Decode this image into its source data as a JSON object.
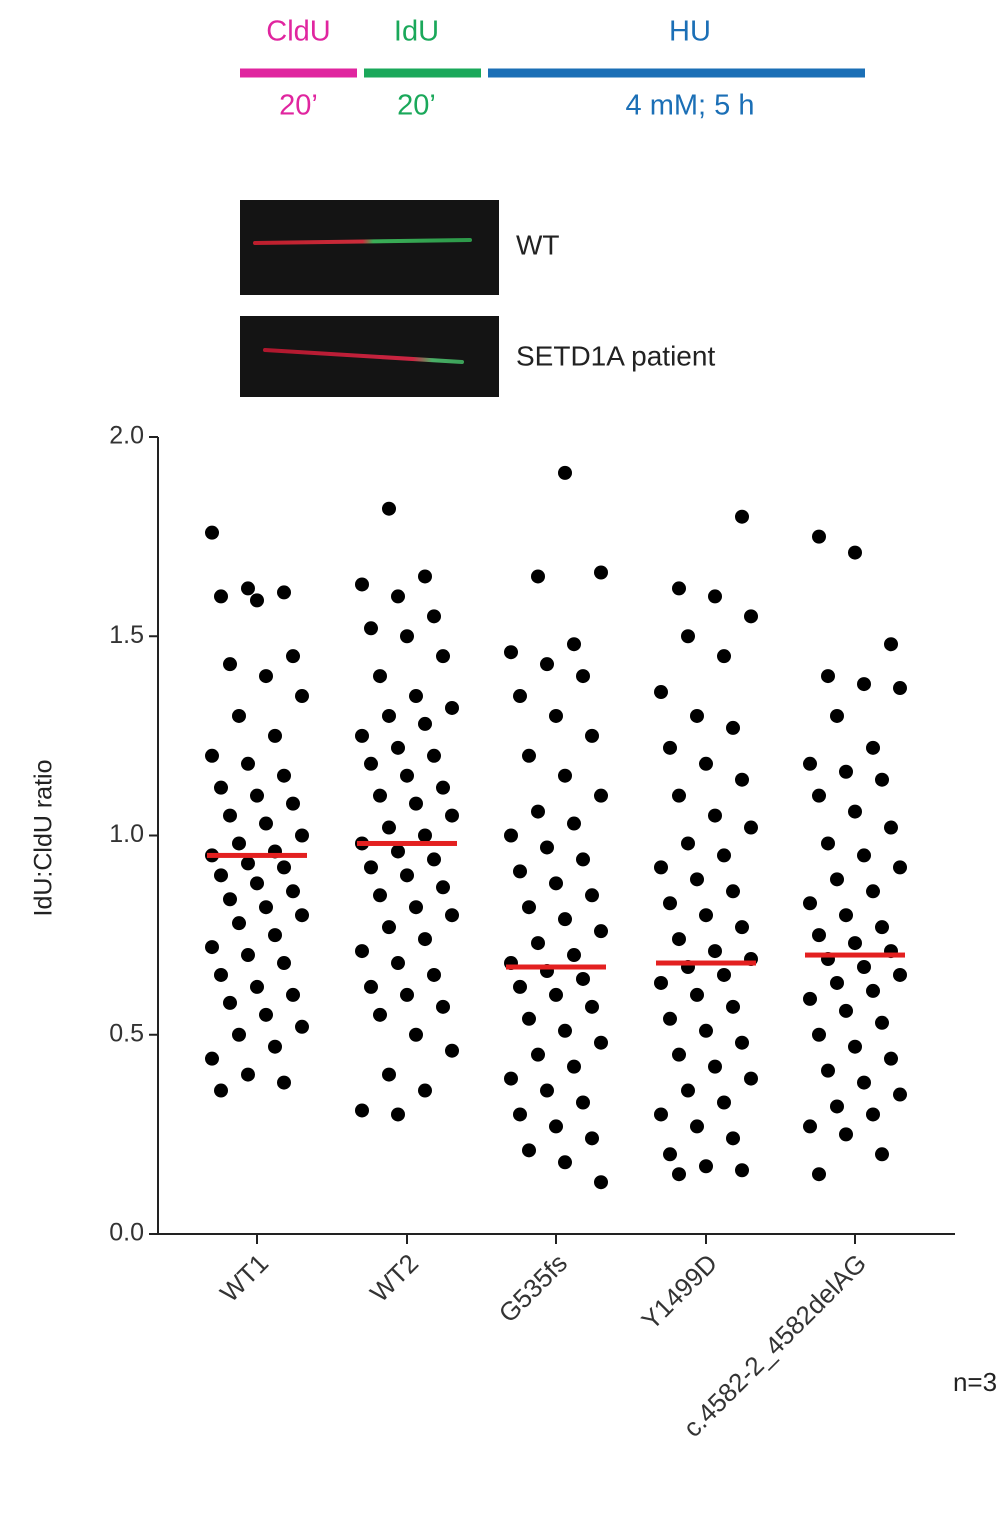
{
  "schematic": {
    "steps": [
      {
        "label": "CldU",
        "time": "20’",
        "color": "#e0259f"
      },
      {
        "label": "IdU",
        "time": "20’",
        "color": "#1aa85a"
      },
      {
        "label": "HU",
        "time": "4 mM; 5 h",
        "color": "#1b6fb6"
      }
    ]
  },
  "micrographs": [
    {
      "label": "WT"
    },
    {
      "label": "SETD1A patient"
    }
  ],
  "chart_data": {
    "type": "scatter",
    "ylabel": "IdU:CldU ratio",
    "note": "n=3",
    "categories": [
      "WT1",
      "WT2",
      "G535fs",
      "Y1499D",
      "c.4582-2_4582delAG"
    ],
    "values": [
      [
        1.76,
        1.62,
        1.61,
        1.6,
        1.59,
        1.45,
        1.43,
        1.4,
        1.35,
        1.3,
        1.25,
        1.2,
        1.18,
        1.15,
        1.12,
        1.1,
        1.08,
        1.05,
        1.03,
        1.0,
        0.98,
        0.96,
        0.95,
        0.93,
        0.92,
        0.9,
        0.88,
        0.86,
        0.84,
        0.82,
        0.8,
        0.78,
        0.75,
        0.72,
        0.7,
        0.68,
        0.65,
        0.62,
        0.6,
        0.58,
        0.55,
        0.52,
        0.5,
        0.47,
        0.44,
        0.4,
        0.38,
        0.36
      ],
      [
        1.82,
        1.65,
        1.63,
        1.6,
        1.55,
        1.52,
        1.5,
        1.45,
        1.4,
        1.35,
        1.32,
        1.3,
        1.28,
        1.25,
        1.22,
        1.2,
        1.18,
        1.15,
        1.12,
        1.1,
        1.08,
        1.05,
        1.02,
        1.0,
        0.98,
        0.96,
        0.94,
        0.92,
        0.9,
        0.87,
        0.85,
        0.82,
        0.8,
        0.77,
        0.74,
        0.71,
        0.68,
        0.65,
        0.62,
        0.6,
        0.57,
        0.55,
        0.5,
        0.46,
        0.4,
        0.36,
        0.31,
        0.3
      ],
      [
        1.91,
        1.66,
        1.65,
        1.48,
        1.46,
        1.43,
        1.4,
        1.35,
        1.3,
        1.25,
        1.2,
        1.15,
        1.1,
        1.06,
        1.03,
        1.0,
        0.97,
        0.94,
        0.91,
        0.88,
        0.85,
        0.82,
        0.79,
        0.76,
        0.73,
        0.7,
        0.68,
        0.66,
        0.64,
        0.62,
        0.6,
        0.57,
        0.54,
        0.51,
        0.48,
        0.45,
        0.42,
        0.39,
        0.36,
        0.33,
        0.3,
        0.27,
        0.24,
        0.21,
        0.18,
        0.13
      ],
      [
        1.8,
        1.62,
        1.6,
        1.55,
        1.5,
        1.45,
        1.36,
        1.3,
        1.27,
        1.22,
        1.18,
        1.14,
        1.1,
        1.05,
        1.02,
        0.98,
        0.95,
        0.92,
        0.89,
        0.86,
        0.83,
        0.8,
        0.77,
        0.74,
        0.71,
        0.69,
        0.67,
        0.65,
        0.63,
        0.6,
        0.57,
        0.54,
        0.51,
        0.48,
        0.45,
        0.42,
        0.39,
        0.36,
        0.33,
        0.3,
        0.27,
        0.24,
        0.2,
        0.17,
        0.16,
        0.15
      ],
      [
        1.75,
        1.71,
        1.48,
        1.4,
        1.38,
        1.37,
        1.3,
        1.22,
        1.18,
        1.16,
        1.14,
        1.1,
        1.06,
        1.02,
        0.98,
        0.95,
        0.92,
        0.89,
        0.86,
        0.83,
        0.8,
        0.77,
        0.75,
        0.73,
        0.71,
        0.69,
        0.67,
        0.65,
        0.63,
        0.61,
        0.59,
        0.56,
        0.53,
        0.5,
        0.47,
        0.44,
        0.41,
        0.38,
        0.35,
        0.32,
        0.3,
        0.27,
        0.25,
        0.2,
        0.15
      ]
    ],
    "medians": [
      0.95,
      0.98,
      0.67,
      0.68,
      0.7
    ],
    "color": "#000000",
    "median_color": "#e32020",
    "ylim": [
      0,
      2
    ],
    "yticks": [
      {
        "value": 0,
        "label": "0.0"
      },
      {
        "value": 0.5,
        "label": "0.5"
      },
      {
        "value": 1,
        "label": "1.0"
      },
      {
        "value": 1.5,
        "label": "1.5"
      },
      {
        "value": 2,
        "label": "2.0"
      }
    ]
  }
}
